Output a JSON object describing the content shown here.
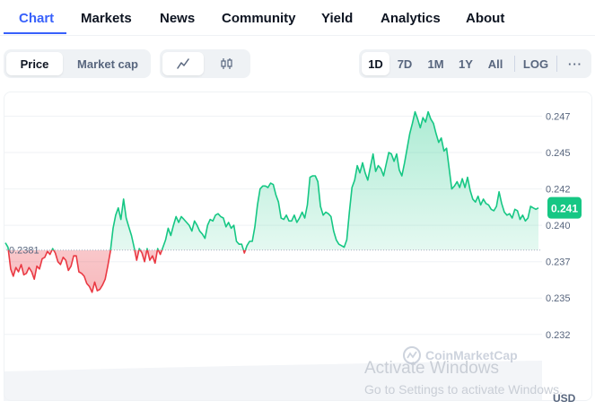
{
  "tabs": [
    {
      "label": "Chart"
    },
    {
      "label": "Markets"
    },
    {
      "label": "News"
    },
    {
      "label": "Community"
    },
    {
      "label": "Yield"
    },
    {
      "label": "Analytics"
    },
    {
      "label": "About"
    }
  ],
  "active_tab": "Chart",
  "view_toggle": {
    "price_label": "Price",
    "market_cap_label": "Market cap",
    "selected": "Price"
  },
  "chart_style_toggle": {
    "line_icon": "line-chart-icon",
    "candle_icon": "candlestick-icon",
    "selected": "line"
  },
  "range_buttons": [
    {
      "label": "1D"
    },
    {
      "label": "7D"
    },
    {
      "label": "1M"
    },
    {
      "label": "1Y"
    },
    {
      "label": "All"
    },
    {
      "label": "LOG"
    }
  ],
  "selected_range": "1D",
  "more_label": "···",
  "colors": {
    "accent": "#3861fb",
    "up": "#16c784",
    "down": "#ea3943"
  },
  "chart_data": {
    "type": "area",
    "baseline_label": "0.2381",
    "baseline": 0.2381,
    "current_price_label": "0.241",
    "current_price": 0.241,
    "currency_label": "USD",
    "y_ticks": [
      "0.247",
      "0.245",
      "0.242",
      "0.240",
      "0.237",
      "0.235",
      "0.232"
    ],
    "y_tick_values": [
      0.2473,
      0.2448,
      0.2423,
      0.2398,
      0.2373,
      0.2348,
      0.2323
    ],
    "ylim": [
      0.2305,
      0.2485
    ],
    "watermark_logo": "CoinMarketCap",
    "series": [
      {
        "values": [
          0.2386,
          0.2383,
          0.2368,
          0.2363,
          0.2369,
          0.2366,
          0.2371,
          0.2364,
          0.2365,
          0.2369,
          0.2366,
          0.2361,
          0.237,
          0.2368,
          0.2375,
          0.2376,
          0.238,
          0.2378,
          0.2382,
          0.2379,
          0.2373,
          0.2371,
          0.2376,
          0.2374,
          0.2367,
          0.237,
          0.2377,
          0.2377,
          0.2366,
          0.2365,
          0.2363,
          0.2358,
          0.2356,
          0.2352,
          0.2359,
          0.2353,
          0.2354,
          0.2357,
          0.2361,
          0.237,
          0.238,
          0.2396,
          0.2405,
          0.241,
          0.2402,
          0.2416,
          0.2403,
          0.2397,
          0.2391,
          0.2383,
          0.2374,
          0.2382,
          0.2379,
          0.2373,
          0.2382,
          0.2374,
          0.2377,
          0.2372,
          0.2382,
          0.2378,
          0.2383,
          0.2388,
          0.2396,
          0.2391,
          0.2398,
          0.2404,
          0.24,
          0.2404,
          0.2402,
          0.24,
          0.2398,
          0.2394,
          0.2401,
          0.2398,
          0.2394,
          0.2392,
          0.2389,
          0.2398,
          0.2402,
          0.2401,
          0.2405,
          0.2406,
          0.2404,
          0.2403,
          0.2397,
          0.24,
          0.2396,
          0.2398,
          0.2387,
          0.2385,
          0.2385,
          0.2379,
          0.2384,
          0.2387,
          0.2387,
          0.2397,
          0.2412,
          0.2423,
          0.2425,
          0.2425,
          0.2424,
          0.2427,
          0.2426,
          0.2419,
          0.2414,
          0.2403,
          0.2402,
          0.2405,
          0.2401,
          0.2401,
          0.2405,
          0.24,
          0.2403,
          0.2407,
          0.2403,
          0.2412,
          0.2431,
          0.2432,
          0.2432,
          0.2428,
          0.2411,
          0.2405,
          0.2407,
          0.2406,
          0.2404,
          0.2394,
          0.2388,
          0.2385,
          0.2384,
          0.2383,
          0.2388,
          0.2407,
          0.2424,
          0.2429,
          0.2439,
          0.2434,
          0.2441,
          0.2434,
          0.2429,
          0.2438,
          0.2447,
          0.2435,
          0.2439,
          0.2437,
          0.2432,
          0.244,
          0.2448,
          0.2447,
          0.2442,
          0.2447,
          0.2436,
          0.2432,
          0.2441,
          0.2451,
          0.2461,
          0.2468,
          0.2476,
          0.2471,
          0.2465,
          0.2472,
          0.2469,
          0.2476,
          0.2471,
          0.2468,
          0.2461,
          0.2455,
          0.2458,
          0.2449,
          0.2451,
          0.2437,
          0.2423,
          0.2425,
          0.2428,
          0.2424,
          0.243,
          0.2424,
          0.2431,
          0.2422,
          0.2416,
          0.2414,
          0.2418,
          0.2412,
          0.2416,
          0.2413,
          0.2412,
          0.2409,
          0.2408,
          0.2411,
          0.2421,
          0.2413,
          0.2407,
          0.2405,
          0.2406,
          0.2403,
          0.2409,
          0.2408,
          0.2402,
          0.2405,
          0.2401,
          0.2403,
          0.2411,
          0.241,
          0.2409,
          0.241
        ]
      }
    ]
  }
}
